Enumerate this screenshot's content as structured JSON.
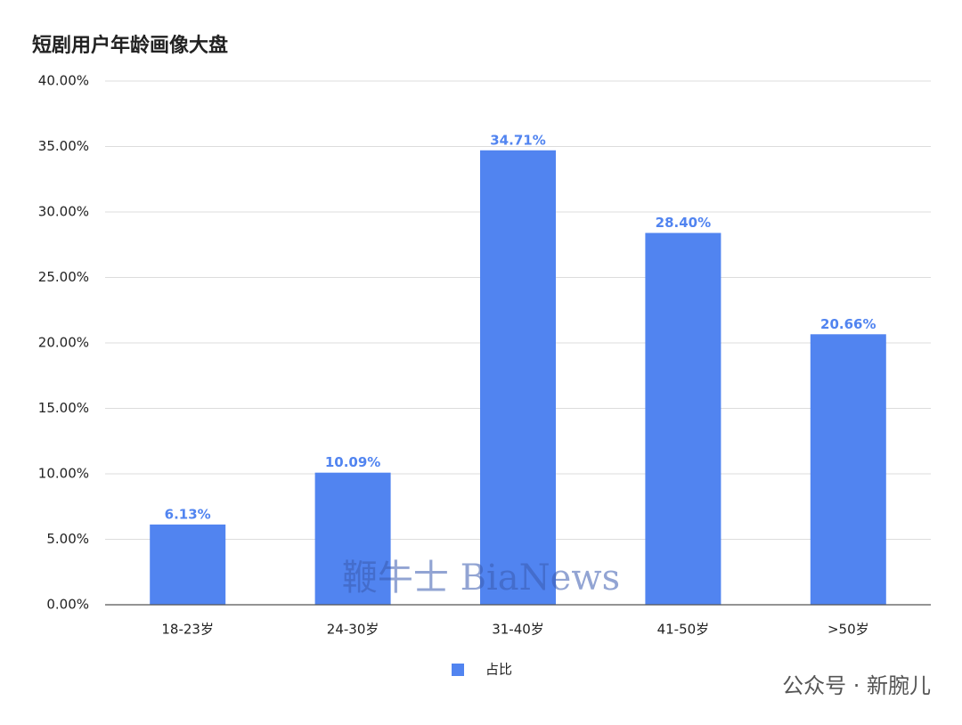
{
  "chart_data": {
    "type": "bar",
    "title": "短剧用户年龄画像大盘",
    "categories": [
      "18-23岁",
      "24-30岁",
      "31-40岁",
      "41-50岁",
      ">50岁"
    ],
    "series": [
      {
        "name": "占比",
        "color": "#5184f0",
        "values": [
          6.13,
          10.09,
          34.71,
          28.4,
          20.66
        ],
        "value_labels": [
          "6.13%",
          "10.09%",
          "34.71%",
          "28.40%",
          "20.66%"
        ]
      }
    ],
    "ylim": [
      0,
      40
    ],
    "yticks": [
      {
        "value": 0,
        "label": "0.00%"
      },
      {
        "value": 5,
        "label": "5.00%"
      },
      {
        "value": 10,
        "label": "10.00%"
      },
      {
        "value": 15,
        "label": "15.00%"
      },
      {
        "value": 20,
        "label": "20.00%"
      },
      {
        "value": 25,
        "label": "25.00%"
      },
      {
        "value": 30,
        "label": "30.00%"
      },
      {
        "value": 35,
        "label": "35.00%"
      },
      {
        "value": 40,
        "label": "40.00%"
      }
    ],
    "grid": true,
    "legend": "bottom",
    "watermarks": [
      "鞭牛士 BiaNews",
      "公众号 · 新腕儿"
    ]
  }
}
